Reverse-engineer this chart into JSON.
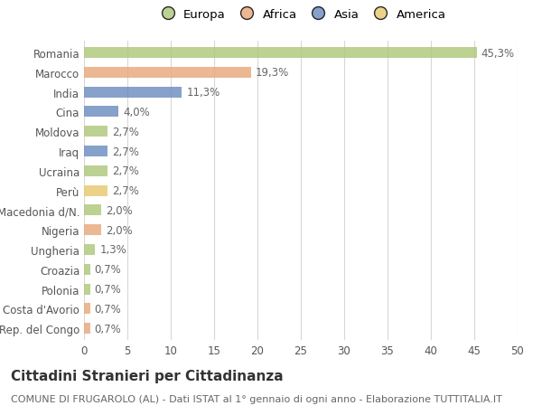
{
  "categories": [
    "Romania",
    "Marocco",
    "India",
    "Cina",
    "Moldova",
    "Iraq",
    "Ucraina",
    "Perù",
    "Macedonia d/N.",
    "Nigeria",
    "Ungheria",
    "Croazia",
    "Polonia",
    "Costa d'Avorio",
    "Rep. del Congo"
  ],
  "values": [
    45.3,
    19.3,
    11.3,
    4.0,
    2.7,
    2.7,
    2.7,
    2.7,
    2.0,
    2.0,
    1.3,
    0.7,
    0.7,
    0.7,
    0.7
  ],
  "labels": [
    "45,3%",
    "19,3%",
    "11,3%",
    "4,0%",
    "2,7%",
    "2,7%",
    "2,7%",
    "2,7%",
    "2,0%",
    "2,0%",
    "1,3%",
    "0,7%",
    "0,7%",
    "0,7%",
    "0,7%"
  ],
  "colors": [
    "#aec77a",
    "#e8a87c",
    "#6b8cbf",
    "#6b8cbf",
    "#aec77a",
    "#6b8cbf",
    "#aec77a",
    "#e8c96e",
    "#aec77a",
    "#e8a87c",
    "#aec77a",
    "#aec77a",
    "#aec77a",
    "#e8a87c",
    "#e8a87c"
  ],
  "legend_labels": [
    "Europa",
    "Africa",
    "Asia",
    "America"
  ],
  "legend_colors": [
    "#aec77a",
    "#e8a87c",
    "#6b8cbf",
    "#e8c96e"
  ],
  "title": "Cittadini Stranieri per Cittadinanza",
  "subtitle": "COMUNE DI FRUGAROLO (AL) - Dati ISTAT al 1° gennaio di ogni anno - Elaborazione TUTTITALIA.IT",
  "xlim": [
    0,
    50
  ],
  "xticks": [
    0,
    5,
    10,
    15,
    20,
    25,
    30,
    35,
    40,
    45,
    50
  ],
  "background_color": "#ffffff",
  "grid_color": "#d8d8d8",
  "bar_height": 0.55,
  "label_fontsize": 8.5,
  "tick_fontsize": 8.5,
  "legend_fontsize": 9.5,
  "title_fontsize": 11,
  "subtitle_fontsize": 8
}
